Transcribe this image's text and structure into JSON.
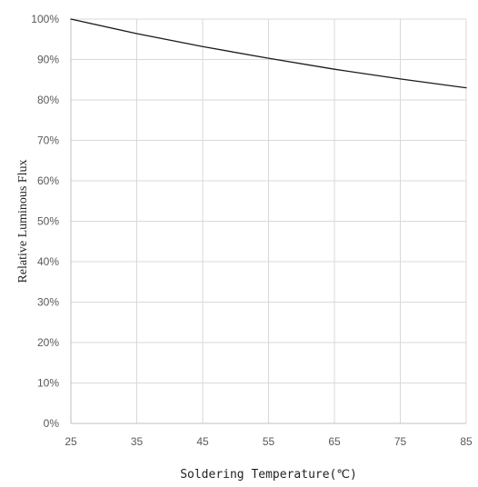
{
  "chart_data": {
    "type": "line",
    "title": "",
    "xlabel": "Soldering Temperature(℃)",
    "ylabel": "Relative Luminous Flux",
    "x_ticks": [
      25,
      35,
      45,
      55,
      65,
      75,
      85
    ],
    "x_tick_labels": [
      "25",
      "35",
      "45",
      "55",
      "65",
      "75",
      "85"
    ],
    "y_ticks": [
      0,
      10,
      20,
      30,
      40,
      50,
      60,
      70,
      80,
      90,
      100
    ],
    "y_tick_labels": [
      "0%",
      "10%",
      "20%",
      "30%",
      "40%",
      "50%",
      "60%",
      "70%",
      "80%",
      "90%",
      "100%"
    ],
    "xlim": [
      25,
      85
    ],
    "ylim": [
      0,
      100
    ],
    "grid": true,
    "series": [
      {
        "color": "#1a1a1a",
        "x": [
          25,
          35,
          45,
          55,
          65,
          75,
          85
        ],
        "y": [
          100,
          96.4,
          93.2,
          90.3,
          87.6,
          85.2,
          83.0
        ]
      }
    ]
  }
}
